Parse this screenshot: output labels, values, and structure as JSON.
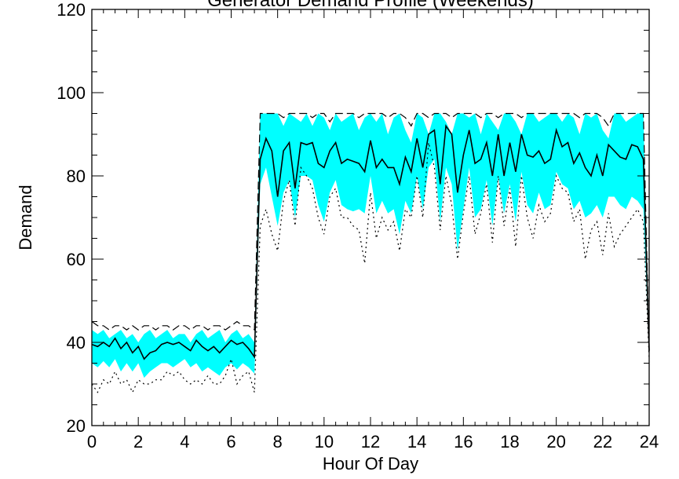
{
  "chart_data": {
    "type": "area",
    "title": "Generator Demand Profile (Weekends)",
    "xlabel": "Hour Of Day",
    "ylabel": "Demand",
    "xlim": [
      0,
      24
    ],
    "ylim": [
      20,
      120
    ],
    "xticks": [
      0,
      2,
      4,
      6,
      8,
      10,
      12,
      14,
      16,
      18,
      20,
      22,
      24
    ],
    "yticks": [
      20,
      40,
      60,
      80,
      100,
      120
    ],
    "grid": false,
    "band_color": "#00ffff",
    "line_color": "#000000",
    "x": [
      0.0,
      0.25,
      0.5,
      0.75,
      1.0,
      1.25,
      1.5,
      1.75,
      2.0,
      2.25,
      2.5,
      2.75,
      3.0,
      3.25,
      3.5,
      3.75,
      4.0,
      4.25,
      4.5,
      4.75,
      5.0,
      5.25,
      5.5,
      5.75,
      6.0,
      6.25,
      6.5,
      6.75,
      7.0,
      7.25,
      7.5,
      7.75,
      8.0,
      8.25,
      8.5,
      8.75,
      9.0,
      9.25,
      9.5,
      9.75,
      10.0,
      10.25,
      10.5,
      10.75,
      11.0,
      11.25,
      11.5,
      11.75,
      12.0,
      12.25,
      12.5,
      12.75,
      13.0,
      13.25,
      13.5,
      13.75,
      14.0,
      14.25,
      14.5,
      14.75,
      15.0,
      15.25,
      15.5,
      15.75,
      16.0,
      16.25,
      16.5,
      16.75,
      17.0,
      17.25,
      17.5,
      17.75,
      18.0,
      18.25,
      18.5,
      18.75,
      19.0,
      19.25,
      19.5,
      19.75,
      20.0,
      20.25,
      20.5,
      20.75,
      21.0,
      21.25,
      21.5,
      21.75,
      22.0,
      22.25,
      22.5,
      22.75,
      23.0,
      23.25,
      23.5,
      23.75,
      24.0
    ],
    "series": [
      {
        "role": "maximum",
        "style": "dashed",
        "values": [
          45,
          44,
          44,
          43,
          44,
          44,
          43,
          44,
          43,
          44,
          44,
          43,
          44,
          44,
          43,
          44,
          44,
          43,
          44,
          44,
          43,
          44,
          44,
          43,
          44,
          45,
          44,
          44,
          43,
          95,
          95,
          95,
          95,
          94,
          95,
          95,
          95,
          95,
          94,
          95,
          95,
          93,
          95,
          95,
          95,
          95,
          94,
          95,
          95,
          95,
          95,
          94,
          95,
          95,
          94,
          92,
          95,
          95,
          94,
          95,
          95,
          95,
          94,
          95,
          95,
          95,
          95,
          94,
          95,
          95,
          94,
          95,
          95,
          95,
          94,
          95,
          95,
          95,
          95,
          95,
          95,
          95,
          95,
          95,
          94,
          95,
          95,
          95,
          94,
          92,
          95,
          95,
          95,
          95,
          95,
          95,
          38
        ]
      },
      {
        "role": "upper",
        "style": "band",
        "values": [
          43,
          42,
          43,
          41,
          42,
          43,
          41,
          42,
          40,
          42,
          43,
          41,
          42,
          43,
          41,
          42,
          42,
          40,
          42,
          43,
          41,
          42,
          43,
          40,
          42,
          43,
          41,
          42,
          40,
          95,
          95,
          95,
          95,
          92,
          95,
          94,
          93,
          95,
          92,
          95,
          94,
          91,
          95,
          93,
          94,
          95,
          91,
          94,
          95,
          93,
          95,
          90,
          94,
          95,
          91,
          88,
          95,
          94,
          90,
          95,
          95,
          93,
          90,
          95,
          95,
          94,
          95,
          90,
          95,
          93,
          91,
          95,
          95,
          93,
          90,
          95,
          95,
          93,
          94,
          95,
          95,
          93,
          95,
          94,
          90,
          95,
          94,
          95,
          91,
          89,
          95,
          95,
          93,
          94,
          95,
          95,
          38
        ]
      },
      {
        "role": "mean",
        "style": "solid",
        "values": [
          39.5,
          39,
          40,
          39,
          41,
          38.5,
          40,
          37.5,
          39,
          36,
          37.5,
          38,
          39.5,
          40,
          39.5,
          40,
          39,
          38,
          40.5,
          39,
          38,
          39,
          37.5,
          39,
          40.5,
          39.5,
          40,
          38.5,
          36.5,
          84,
          89,
          86,
          75,
          86,
          88,
          77,
          88,
          87.5,
          88,
          83,
          82,
          86,
          88,
          83,
          84,
          83.5,
          83,
          81,
          88.5,
          82,
          84,
          82,
          82,
          78,
          84.5,
          81,
          89,
          82,
          90,
          91,
          78,
          92,
          90,
          76,
          85,
          91,
          83,
          84,
          88,
          80,
          90,
          80,
          88,
          81,
          90,
          85,
          84.5,
          86,
          83,
          84,
          91,
          87,
          88,
          83,
          85.5,
          82,
          80,
          85,
          80,
          87.5,
          86,
          84.5,
          84,
          87.5,
          87,
          84,
          38
        ]
      },
      {
        "role": "lower",
        "style": "band",
        "values": [
          35,
          34,
          35.5,
          34,
          36,
          33,
          35,
          33,
          35,
          31.5,
          33,
          34,
          35,
          35,
          34,
          35,
          36,
          34,
          35,
          33,
          34,
          33,
          32,
          34,
          35,
          33.5,
          35,
          34,
          32.5,
          78,
          82,
          75,
          68,
          76,
          79,
          70,
          80,
          80,
          79,
          73,
          69,
          76,
          79,
          73,
          72,
          71.5,
          72,
          71,
          80,
          71,
          74,
          71,
          72,
          66,
          74,
          71,
          80,
          72,
          82,
          84,
          69,
          82,
          78,
          62,
          72,
          82,
          70,
          72,
          79,
          68,
          80,
          71,
          78,
          69,
          81,
          73,
          71,
          76,
          72,
          73,
          81,
          78,
          77,
          72,
          74,
          70,
          71,
          73,
          70,
          75,
          75,
          73,
          72,
          75,
          74,
          72,
          37
        ]
      },
      {
        "role": "minimum",
        "style": "dotted",
        "values": [
          30,
          28,
          31,
          30,
          33,
          30,
          31,
          28,
          31,
          30,
          30,
          31,
          31,
          33,
          32,
          33,
          31,
          30,
          31,
          30,
          32,
          30,
          30,
          32,
          36,
          30,
          32,
          33,
          28,
          68,
          72,
          66,
          62,
          74,
          79,
          68,
          82,
          80,
          77,
          70,
          66,
          75,
          77,
          70,
          70,
          68,
          67,
          59,
          76,
          65,
          70,
          67,
          69,
          62,
          72,
          70,
          80,
          70,
          88,
          82,
          67,
          80,
          73,
          60,
          71,
          80,
          66,
          71,
          78,
          64,
          80,
          68,
          77,
          63,
          80,
          70,
          65,
          73,
          69,
          71,
          80,
          77,
          76,
          69,
          72,
          60,
          67,
          69,
          61,
          71,
          63,
          66,
          68,
          70,
          72,
          69,
          36
        ]
      }
    ]
  }
}
